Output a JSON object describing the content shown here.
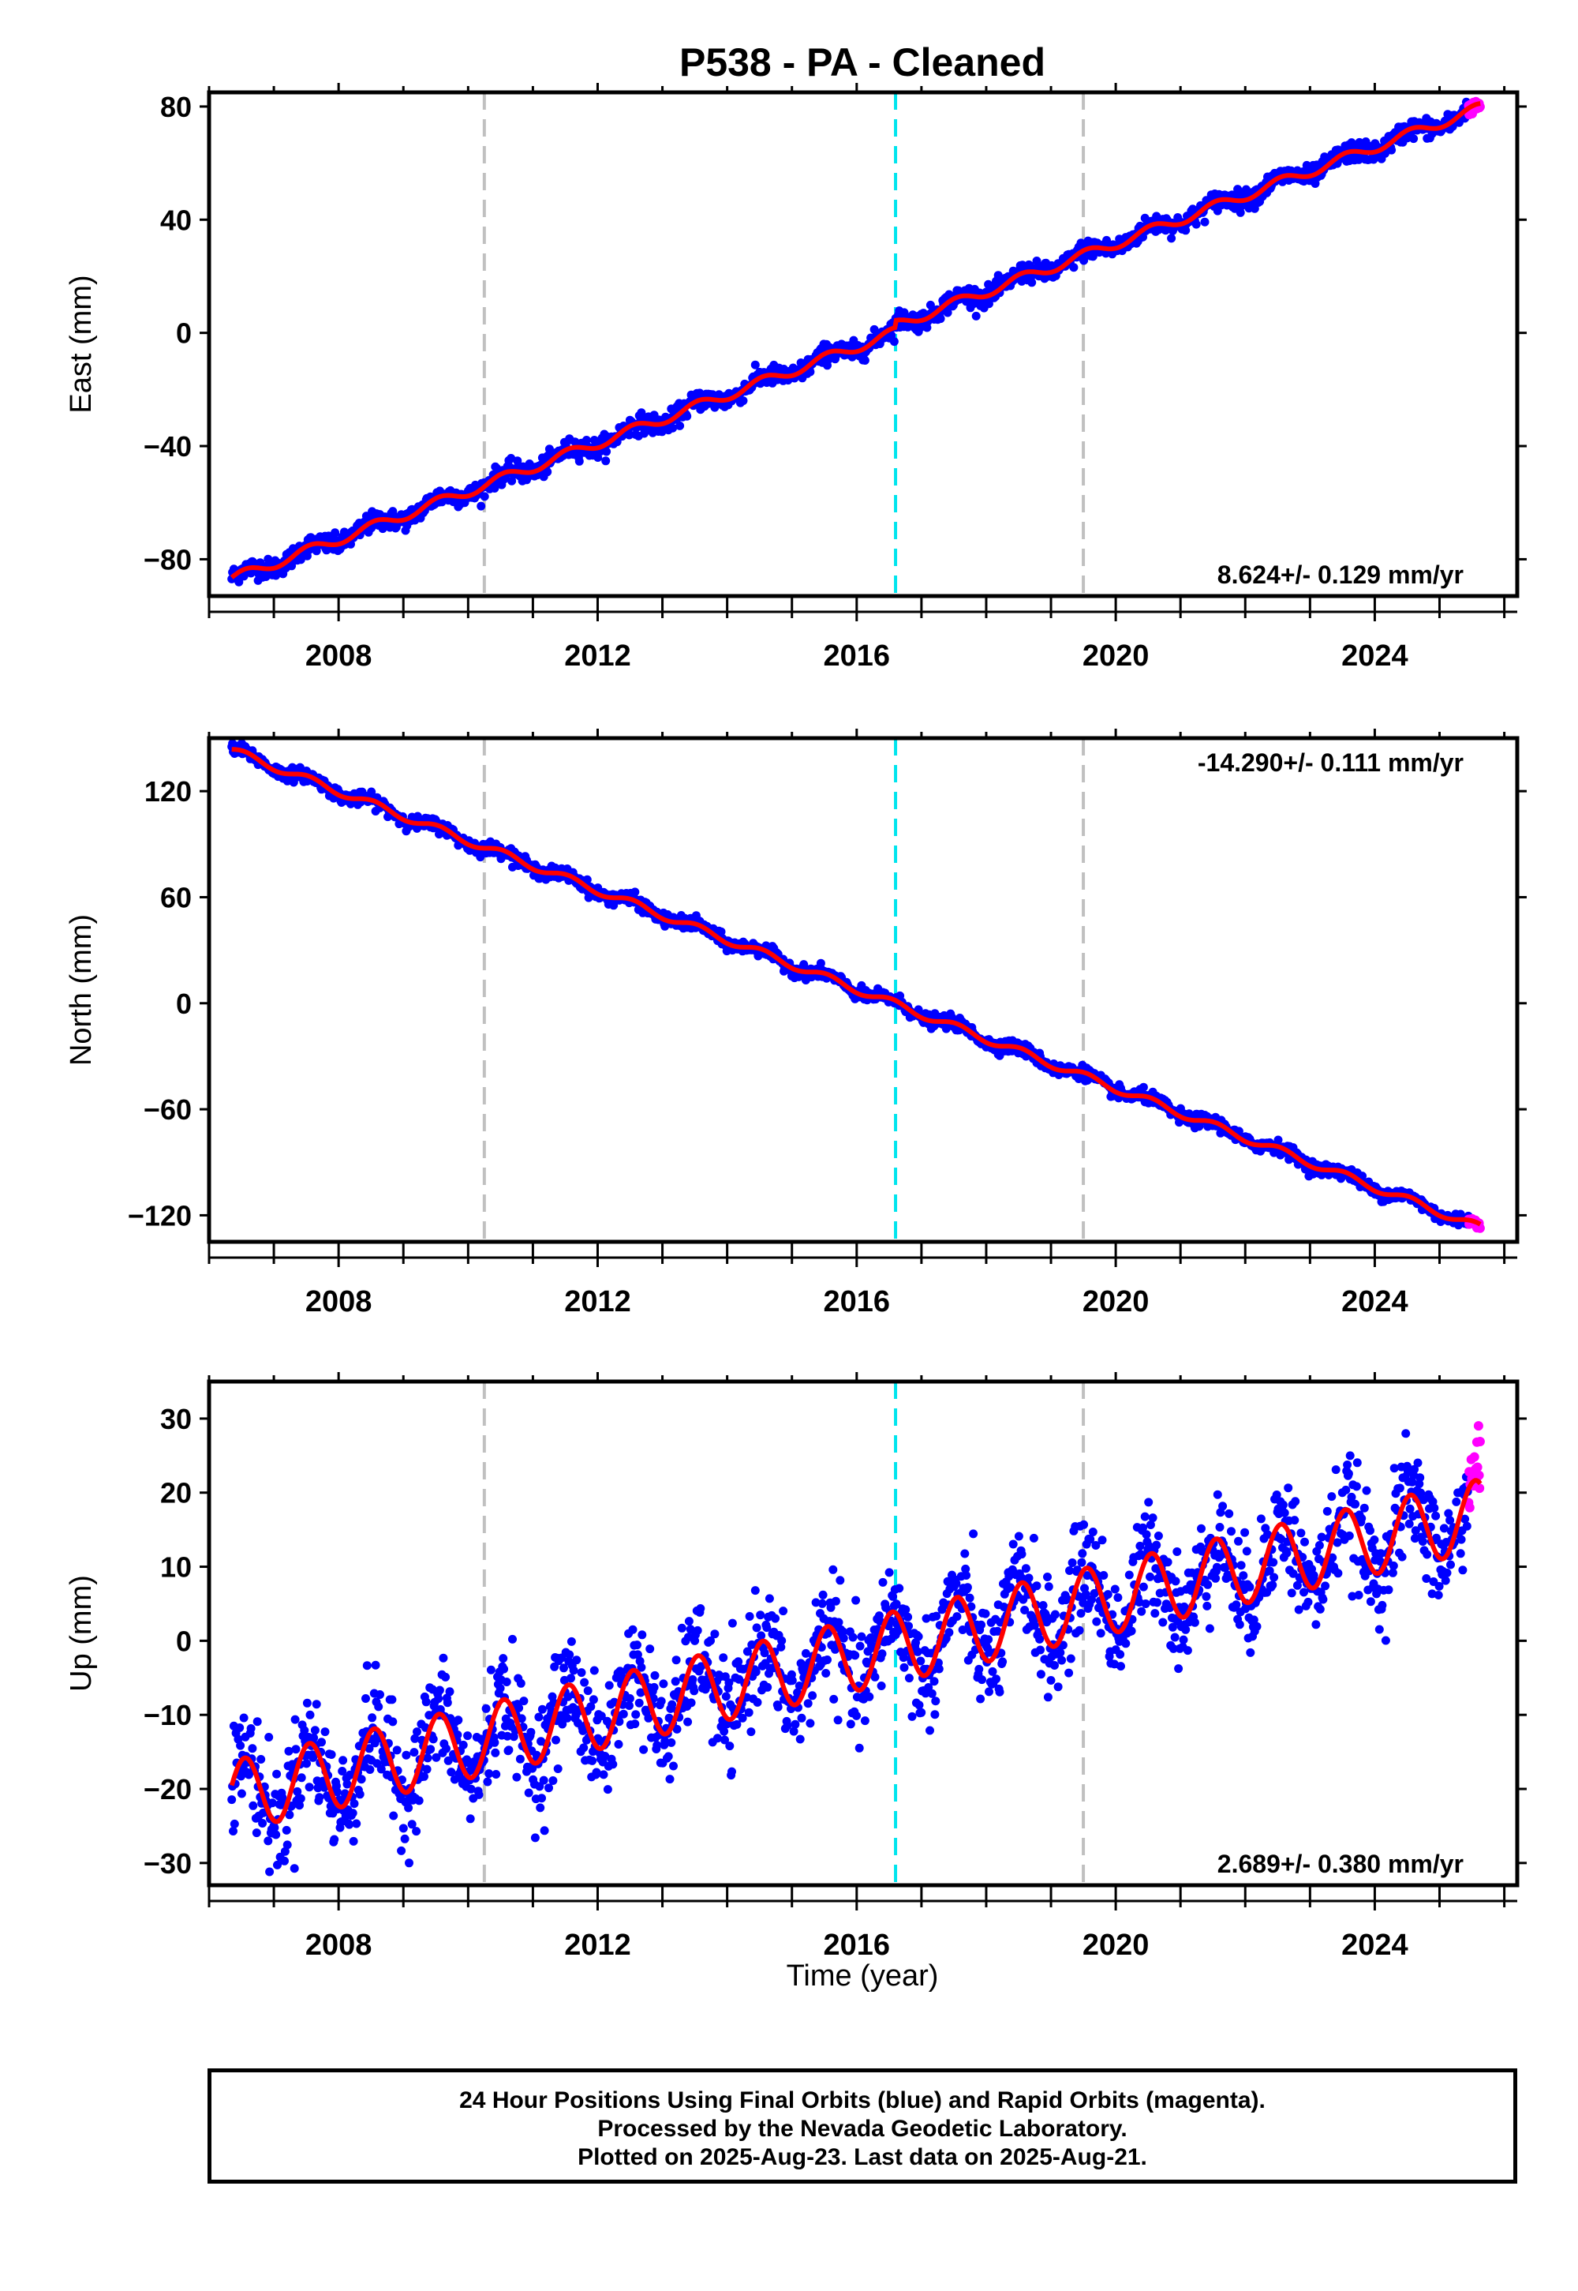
{
  "title": "P538  - PA - Cleaned",
  "xlabel": "Time (year)",
  "footer": {
    "line1": "24 Hour Positions Using Final Orbits (blue) and Rapid Orbits (magenta).",
    "line2": "Processed by the Nevada Geodetic Laboratory.",
    "line3": "Plotted on 2025-Aug-23. Last data on 2025-Aug-21."
  },
  "colors": {
    "final_orbits": "#0000ff",
    "rapid_orbits": "#ff00ff",
    "model": "#ff0000",
    "equipment_change": "#c0c0c0",
    "earthquake": "#00e5ee"
  },
  "chart_data": [
    {
      "type": "scatter",
      "ylabel": "East (mm)",
      "rate_label": "8.624+/- 0.129 mm/yr",
      "rate_position": "bottom-right",
      "xlim": [
        2006.0,
        2026.2
      ],
      "ylim": [
        -93,
        85
      ],
      "xticks": [
        2008,
        2012,
        2016,
        2020,
        2024
      ],
      "yticks": [
        -80,
        -40,
        0,
        40,
        80
      ],
      "gray_lines": [
        2010.25,
        2019.5
      ],
      "cyan_lines": [
        2016.6
      ],
      "start_year": 2006.35,
      "end_year": 2025.63,
      "start_value": -87,
      "end_value": 77,
      "seasonal_amp": 1.8,
      "noise": 1.7,
      "steps": [
        {
          "x": 2016.6,
          "dy": 2.5
        }
      ],
      "rapid_start": 2025.45,
      "rapid_end_value": 80
    },
    {
      "type": "scatter",
      "ylabel": "North (mm)",
      "rate_label": "-14.290+/- 0.111 mm/yr",
      "rate_position": "top-right",
      "xlim": [
        2006.0,
        2026.2
      ],
      "ylim": [
        -135,
        150
      ],
      "xticks": [
        2008,
        2012,
        2016,
        2020,
        2024
      ],
      "yticks": [
        -120,
        -60,
        0,
        60,
        120
      ],
      "gray_lines": [
        2010.25,
        2019.5
      ],
      "cyan_lines": [
        2016.6
      ],
      "start_year": 2006.35,
      "end_year": 2025.63,
      "start_value": 143,
      "end_value": -127,
      "seasonal_amp": 2.2,
      "noise": 1.8,
      "steps": [],
      "rapid_start": 2025.45,
      "rapid_end_value": -125
    },
    {
      "type": "scatter",
      "ylabel": "Up (mm)",
      "rate_label": "2.689+/- 0.380 mm/yr",
      "rate_position": "bottom-right",
      "xlim": [
        2006.0,
        2026.2
      ],
      "ylim": [
        -33,
        35
      ],
      "xticks": [
        2008,
        2012,
        2016,
        2020,
        2024
      ],
      "yticks": [
        -30,
        -20,
        -10,
        0,
        10,
        20,
        30
      ],
      "gray_lines": [
        2010.25,
        2019.5
      ],
      "cyan_lines": [
        2016.6
      ],
      "start_year": 2006.35,
      "end_year": 2025.63,
      "start_value": -21,
      "end_value": 17,
      "seasonal_amp": 4.8,
      "noise": 3.6,
      "steps": [],
      "rapid_start": 2025.45,
      "rapid_end_value": 24
    }
  ]
}
